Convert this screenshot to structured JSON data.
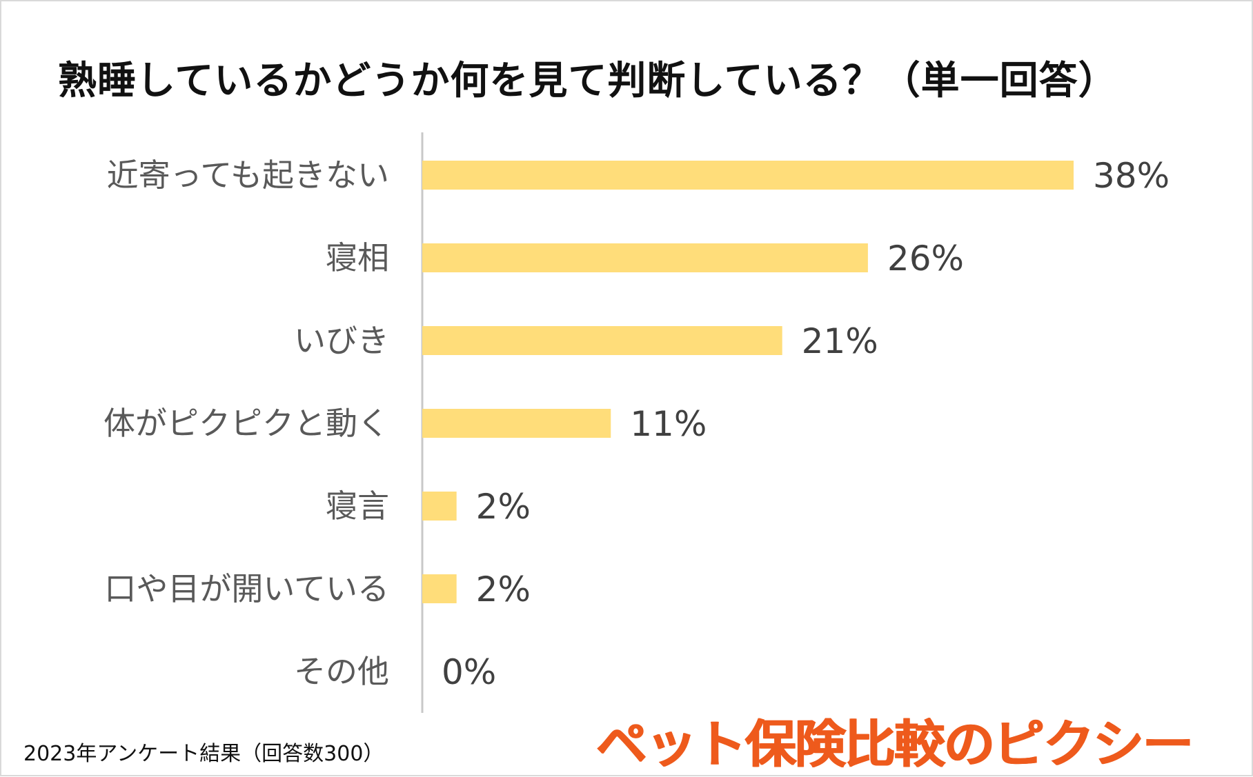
{
  "chart_data": {
    "type": "bar",
    "orientation": "horizontal",
    "title": "熟睡しているかどうか何を見て判断している？（単一回答）",
    "categories": [
      "近寄っても起きない",
      "寝相",
      "いびき",
      "体がピクピクと動く",
      "寝言",
      "口や目が開いている",
      "その他"
    ],
    "values": [
      38,
      26,
      21,
      11,
      2,
      2,
      0
    ],
    "value_labels": [
      "38%",
      "26%",
      "21%",
      "11%",
      "2%",
      "2%",
      "0%"
    ],
    "xlim": [
      0,
      38
    ],
    "xlabel": "",
    "ylabel": "",
    "grid": false,
    "bar_color": "#ffdd7a"
  },
  "footnote": "2023年アンケート結果（回答数300）",
  "brand": "ペット保険比較のピクシー",
  "colors": {
    "bar": "#ffdd7a",
    "brand": "#ee5a1c",
    "axis": "#c8c8c8"
  }
}
